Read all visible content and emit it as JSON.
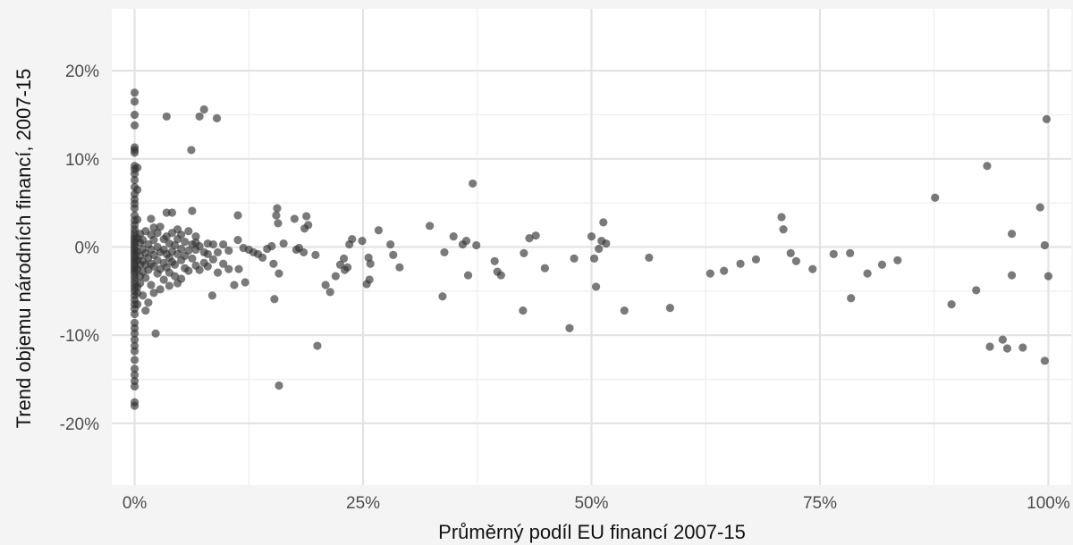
{
  "chart_data": {
    "type": "scatter",
    "title": "",
    "xlabel": "Průměrný podíl EU financí 2007-15",
    "ylabel": "Trend objemu národních financí, 2007-15",
    "xlim": [
      -2.5,
      102.5
    ],
    "ylim": [
      -27,
      27
    ],
    "x_ticks": [
      {
        "value": 0,
        "label": "0%"
      },
      {
        "value": 25,
        "label": "25%"
      },
      {
        "value": 50,
        "label": "50%"
      },
      {
        "value": 75,
        "label": "75%"
      },
      {
        "value": 100,
        "label": "100%"
      }
    ],
    "y_ticks": [
      {
        "value": -20,
        "label": "-20%"
      },
      {
        "value": -10,
        "label": "-10%"
      },
      {
        "value": 0,
        "label": "0%"
      },
      {
        "value": 10,
        "label": "10%"
      },
      {
        "value": 20,
        "label": "20%"
      }
    ],
    "grid": true,
    "point_color": "#333333",
    "point_opacity": 0.65,
    "points": [
      {
        "x": 0,
        "y": 17.5
      },
      {
        "x": 0,
        "y": 16.5
      },
      {
        "x": 0,
        "y": 15
      },
      {
        "x": 0,
        "y": 13.8
      },
      {
        "x": 0,
        "y": 11.3
      },
      {
        "x": 0,
        "y": 11
      },
      {
        "x": 0,
        "y": 10.7
      },
      {
        "x": 0,
        "y": 9.2
      },
      {
        "x": 0,
        "y": 8.8
      },
      {
        "x": 0,
        "y": 8.3
      },
      {
        "x": 0,
        "y": 7.6
      },
      {
        "x": 0,
        "y": 6.8
      },
      {
        "x": 0,
        "y": 6
      },
      {
        "x": 0,
        "y": 5.4
      },
      {
        "x": 0,
        "y": 4.9
      },
      {
        "x": 0,
        "y": 4.4
      },
      {
        "x": 0,
        "y": 3.6
      },
      {
        "x": 0,
        "y": 3
      },
      {
        "x": 0,
        "y": 2.5
      },
      {
        "x": 0,
        "y": 2
      },
      {
        "x": 0,
        "y": 1.6
      },
      {
        "x": 0,
        "y": 1.2
      },
      {
        "x": 0,
        "y": 0.9
      },
      {
        "x": 0,
        "y": 0.6
      },
      {
        "x": 0,
        "y": 0.3
      },
      {
        "x": 0,
        "y": 0
      },
      {
        "x": 0,
        "y": -0.3
      },
      {
        "x": 0,
        "y": -0.6
      },
      {
        "x": 0,
        "y": -0.9
      },
      {
        "x": 0,
        "y": -1.2
      },
      {
        "x": 0,
        "y": -1.5
      },
      {
        "x": 0,
        "y": -1.8
      },
      {
        "x": 0,
        "y": -2.1
      },
      {
        "x": 0,
        "y": -2.4
      },
      {
        "x": 0,
        "y": -2.7
      },
      {
        "x": 0,
        "y": -3
      },
      {
        "x": 0,
        "y": -3.4
      },
      {
        "x": 0,
        "y": -3.8
      },
      {
        "x": 0,
        "y": -4.2
      },
      {
        "x": 0,
        "y": -4.6
      },
      {
        "x": 0,
        "y": -5
      },
      {
        "x": 0,
        "y": -5.5
      },
      {
        "x": 0,
        "y": -6
      },
      {
        "x": 0,
        "y": -6.5
      },
      {
        "x": 0,
        "y": -7
      },
      {
        "x": 0,
        "y": -7.6
      },
      {
        "x": 0,
        "y": -8.6
      },
      {
        "x": 0,
        "y": -9.2
      },
      {
        "x": 0,
        "y": -9.8
      },
      {
        "x": 0,
        "y": -10.5
      },
      {
        "x": 0,
        "y": -11.2
      },
      {
        "x": 0,
        "y": -11.8
      },
      {
        "x": 0,
        "y": -12.8
      },
      {
        "x": 0,
        "y": -13.8
      },
      {
        "x": 0,
        "y": -14.5
      },
      {
        "x": 0,
        "y": -15.2
      },
      {
        "x": 0,
        "y": -15.8
      },
      {
        "x": 0,
        "y": -17.6
      },
      {
        "x": 0,
        "y": -18
      },
      {
        "x": 0.3,
        "y": 9
      },
      {
        "x": 0.3,
        "y": 6.5
      },
      {
        "x": 0.3,
        "y": 3.1
      },
      {
        "x": 0.3,
        "y": 1
      },
      {
        "x": 0.3,
        "y": -0.5
      },
      {
        "x": 0.3,
        "y": -1.5
      },
      {
        "x": 0.3,
        "y": -2.5
      },
      {
        "x": 0.3,
        "y": -4.5
      },
      {
        "x": 0.3,
        "y": -5.2
      },
      {
        "x": 0.3,
        "y": -6.5
      },
      {
        "x": 0.6,
        "y": 1.5
      },
      {
        "x": 0.6,
        "y": 0.5
      },
      {
        "x": 0.6,
        "y": -1
      },
      {
        "x": 0.6,
        "y": -2
      },
      {
        "x": 0.6,
        "y": -3.3
      },
      {
        "x": 0.6,
        "y": -4.1
      },
      {
        "x": 0.9,
        "y": 0.8
      },
      {
        "x": 0.9,
        "y": -0.2
      },
      {
        "x": 0.9,
        "y": -1.6
      },
      {
        "x": 0.9,
        "y": -2.8
      },
      {
        "x": 0.9,
        "y": -5.5
      },
      {
        "x": 1.2,
        "y": 1.8
      },
      {
        "x": 1.2,
        "y": -0.7
      },
      {
        "x": 1.2,
        "y": -2
      },
      {
        "x": 1.2,
        "y": -3.5
      },
      {
        "x": 1.2,
        "y": -7.2
      },
      {
        "x": 1.5,
        "y": 0.3
      },
      {
        "x": 1.5,
        "y": -1.2
      },
      {
        "x": 1.5,
        "y": -2.6
      },
      {
        "x": 1.5,
        "y": -6.3
      },
      {
        "x": 1.8,
        "y": 3.2
      },
      {
        "x": 1.8,
        "y": 1.4
      },
      {
        "x": 1.8,
        "y": -0.3
      },
      {
        "x": 1.8,
        "y": -1.9
      },
      {
        "x": 1.8,
        "y": -4.3
      },
      {
        "x": 2.1,
        "y": 2.2
      },
      {
        "x": 2.1,
        "y": 0.8
      },
      {
        "x": 2.1,
        "y": -0.9
      },
      {
        "x": 2.1,
        "y": -2.2
      },
      {
        "x": 2.1,
        "y": -5.2
      },
      {
        "x": 2.3,
        "y": -9.8
      },
      {
        "x": 2.5,
        "y": 1.6
      },
      {
        "x": 2.5,
        "y": 0
      },
      {
        "x": 2.5,
        "y": -1.5
      },
      {
        "x": 2.5,
        "y": -3
      },
      {
        "x": 2.8,
        "y": 2.3
      },
      {
        "x": 2.8,
        "y": -0.6
      },
      {
        "x": 2.8,
        "y": -2.5
      },
      {
        "x": 2.8,
        "y": -4.8
      },
      {
        "x": 3.2,
        "y": 0.9
      },
      {
        "x": 3.2,
        "y": -0.3
      },
      {
        "x": 3.2,
        "y": -1.8
      },
      {
        "x": 3.2,
        "y": -3.7
      },
      {
        "x": 3.5,
        "y": 14.8
      },
      {
        "x": 3.5,
        "y": 3.9
      },
      {
        "x": 3.5,
        "y": 1.2
      },
      {
        "x": 3.5,
        "y": -0.8
      },
      {
        "x": 3.5,
        "y": -2.3
      },
      {
        "x": 3.8,
        "y": 0.4
      },
      {
        "x": 3.8,
        "y": -1.2
      },
      {
        "x": 3.8,
        "y": -2.9
      },
      {
        "x": 3.8,
        "y": -4.4
      },
      {
        "x": 4.1,
        "y": 3.9
      },
      {
        "x": 4.1,
        "y": 1.6
      },
      {
        "x": 4.1,
        "y": -0.5
      },
      {
        "x": 4.1,
        "y": -1.7
      },
      {
        "x": 4.4,
        "y": 0.2
      },
      {
        "x": 4.4,
        "y": -2
      },
      {
        "x": 4.4,
        "y": -3.3
      },
      {
        "x": 4.7,
        "y": 2
      },
      {
        "x": 4.7,
        "y": 0.9
      },
      {
        "x": 4.7,
        "y": -0.8
      },
      {
        "x": 4.7,
        "y": -4.1
      },
      {
        "x": 5.1,
        "y": 1.4
      },
      {
        "x": 5.1,
        "y": -0.2
      },
      {
        "x": 5.1,
        "y": -1.5
      },
      {
        "x": 5.1,
        "y": -3.6
      },
      {
        "x": 5.5,
        "y": 0.6
      },
      {
        "x": 5.5,
        "y": -1
      },
      {
        "x": 5.5,
        "y": -2.4
      },
      {
        "x": 5.9,
        "y": 1.8
      },
      {
        "x": 5.9,
        "y": -0.4
      },
      {
        "x": 5.9,
        "y": -2.7
      },
      {
        "x": 6.2,
        "y": 11
      },
      {
        "x": 6.3,
        "y": 4.1
      },
      {
        "x": 6.3,
        "y": 0.3
      },
      {
        "x": 6.3,
        "y": -1.3
      },
      {
        "x": 6.7,
        "y": 0.5
      },
      {
        "x": 6.7,
        "y": 1.2
      },
      {
        "x": 6.7,
        "y": -0.3
      },
      {
        "x": 6.7,
        "y": -2.1
      },
      {
        "x": 7.1,
        "y": 14.8
      },
      {
        "x": 7.1,
        "y": 0.1
      },
      {
        "x": 7.1,
        "y": -2.6
      },
      {
        "x": 7.6,
        "y": 15.6
      },
      {
        "x": 7.6,
        "y": -0.6
      },
      {
        "x": 7.6,
        "y": -1.8
      },
      {
        "x": 8,
        "y": 0.4
      },
      {
        "x": 8,
        "y": -0.8
      },
      {
        "x": 8,
        "y": -2.2
      },
      {
        "x": 8.5,
        "y": -5.5
      },
      {
        "x": 8.6,
        "y": 0.3
      },
      {
        "x": 8.6,
        "y": -1.4
      },
      {
        "x": 9,
        "y": 14.6
      },
      {
        "x": 9.1,
        "y": -0.6
      },
      {
        "x": 9.1,
        "y": -2.9
      },
      {
        "x": 9.7,
        "y": 0.3
      },
      {
        "x": 9.7,
        "y": -1.9
      },
      {
        "x": 10.3,
        "y": -0.4
      },
      {
        "x": 10.3,
        "y": -2.5
      },
      {
        "x": 10.9,
        "y": -4.3
      },
      {
        "x": 11.3,
        "y": 3.6
      },
      {
        "x": 11.3,
        "y": 0.8
      },
      {
        "x": 11.4,
        "y": -2.5
      },
      {
        "x": 11.9,
        "y": -0.1
      },
      {
        "x": 12.1,
        "y": -4
      },
      {
        "x": 12.5,
        "y": -0.3
      },
      {
        "x": 13,
        "y": -0.6
      },
      {
        "x": 13.5,
        "y": -0.8
      },
      {
        "x": 14,
        "y": -1.2
      },
      {
        "x": 14.5,
        "y": -0.2
      },
      {
        "x": 15,
        "y": 0.1
      },
      {
        "x": 15.2,
        "y": -1.9
      },
      {
        "x": 15.3,
        "y": -5.9
      },
      {
        "x": 15.5,
        "y": 3.6
      },
      {
        "x": 15.6,
        "y": 4.4
      },
      {
        "x": 15.7,
        "y": 2.7
      },
      {
        "x": 15.8,
        "y": -3
      },
      {
        "x": 15.8,
        "y": -15.7
      },
      {
        "x": 16.3,
        "y": 0.4
      },
      {
        "x": 17.5,
        "y": 3.2
      },
      {
        "x": 17.7,
        "y": -0.3
      },
      {
        "x": 18,
        "y": -0.1
      },
      {
        "x": 18.6,
        "y": 2.1
      },
      {
        "x": 18.8,
        "y": 3.5
      },
      {
        "x": 19,
        "y": 2.5
      },
      {
        "x": 18.5,
        "y": -0.6
      },
      {
        "x": 19.8,
        "y": -0.9
      },
      {
        "x": 20,
        "y": -11.2
      },
      {
        "x": 20.9,
        "y": -4.3
      },
      {
        "x": 21.4,
        "y": -5.1
      },
      {
        "x": 22,
        "y": -3.3
      },
      {
        "x": 22.5,
        "y": -2
      },
      {
        "x": 22.9,
        "y": -1.3
      },
      {
        "x": 23,
        "y": -2.6
      },
      {
        "x": 23.3,
        "y": -2.3
      },
      {
        "x": 23.5,
        "y": 0.3
      },
      {
        "x": 23.8,
        "y": 0.9
      },
      {
        "x": 24.9,
        "y": 0.7
      },
      {
        "x": 25.4,
        "y": -4.2
      },
      {
        "x": 25.6,
        "y": -1.2
      },
      {
        "x": 25.7,
        "y": -3.7
      },
      {
        "x": 25.8,
        "y": -1.9
      },
      {
        "x": 26.7,
        "y": 1.9
      },
      {
        "x": 28,
        "y": 0.3
      },
      {
        "x": 28.3,
        "y": -0.9
      },
      {
        "x": 29,
        "y": -2.3
      },
      {
        "x": 32.3,
        "y": 2.4
      },
      {
        "x": 33.7,
        "y": -5.6
      },
      {
        "x": 33.9,
        "y": -0.6
      },
      {
        "x": 34.9,
        "y": 1.2
      },
      {
        "x": 35.9,
        "y": 0.3
      },
      {
        "x": 36.3,
        "y": 0.7
      },
      {
        "x": 36.5,
        "y": -3.2
      },
      {
        "x": 37,
        "y": 7.2
      },
      {
        "x": 37.4,
        "y": 0.2
      },
      {
        "x": 39.4,
        "y": -1.6
      },
      {
        "x": 39.7,
        "y": -2.8
      },
      {
        "x": 40.1,
        "y": -3.2
      },
      {
        "x": 42.5,
        "y": -7.2
      },
      {
        "x": 42.6,
        "y": -0.7
      },
      {
        "x": 43.2,
        "y": 1
      },
      {
        "x": 43.9,
        "y": 1.3
      },
      {
        "x": 44.9,
        "y": -2.4
      },
      {
        "x": 47.6,
        "y": -9.2
      },
      {
        "x": 48.1,
        "y": -1.3
      },
      {
        "x": 50,
        "y": 1.2
      },
      {
        "x": 50.3,
        "y": -1.3
      },
      {
        "x": 50.5,
        "y": -4.5
      },
      {
        "x": 50.8,
        "y": -0.2
      },
      {
        "x": 51.1,
        "y": 0.7
      },
      {
        "x": 51.3,
        "y": 2.8
      },
      {
        "x": 51.6,
        "y": 0.4
      },
      {
        "x": 53.6,
        "y": -7.2
      },
      {
        "x": 56.3,
        "y": -1.2
      },
      {
        "x": 58.6,
        "y": -6.9
      },
      {
        "x": 63,
        "y": -3
      },
      {
        "x": 64.5,
        "y": -2.7
      },
      {
        "x": 66.3,
        "y": -1.9
      },
      {
        "x": 68,
        "y": -1.4
      },
      {
        "x": 70.8,
        "y": 3.4
      },
      {
        "x": 71,
        "y": 2
      },
      {
        "x": 71.8,
        "y": -0.7
      },
      {
        "x": 72.4,
        "y": -1.6
      },
      {
        "x": 74.2,
        "y": -2.5
      },
      {
        "x": 76.5,
        "y": -0.8
      },
      {
        "x": 78.3,
        "y": -0.7
      },
      {
        "x": 78.4,
        "y": -5.8
      },
      {
        "x": 80.2,
        "y": -3
      },
      {
        "x": 81.8,
        "y": -2
      },
      {
        "x": 83.5,
        "y": -1.5
      },
      {
        "x": 87.6,
        "y": 5.6
      },
      {
        "x": 89.4,
        "y": -6.5
      },
      {
        "x": 92.1,
        "y": -4.9
      },
      {
        "x": 93.3,
        "y": 9.2
      },
      {
        "x": 93.6,
        "y": -11.3
      },
      {
        "x": 95,
        "y": -10.5
      },
      {
        "x": 95.5,
        "y": -11.5
      },
      {
        "x": 96,
        "y": 1.5
      },
      {
        "x": 96,
        "y": -3.2
      },
      {
        "x": 97.2,
        "y": -11.4
      },
      {
        "x": 99.1,
        "y": 4.5
      },
      {
        "x": 99.6,
        "y": 0.2
      },
      {
        "x": 99.6,
        "y": -12.9
      },
      {
        "x": 99.8,
        "y": 14.5
      },
      {
        "x": 100,
        "y": -3.3
      }
    ]
  }
}
